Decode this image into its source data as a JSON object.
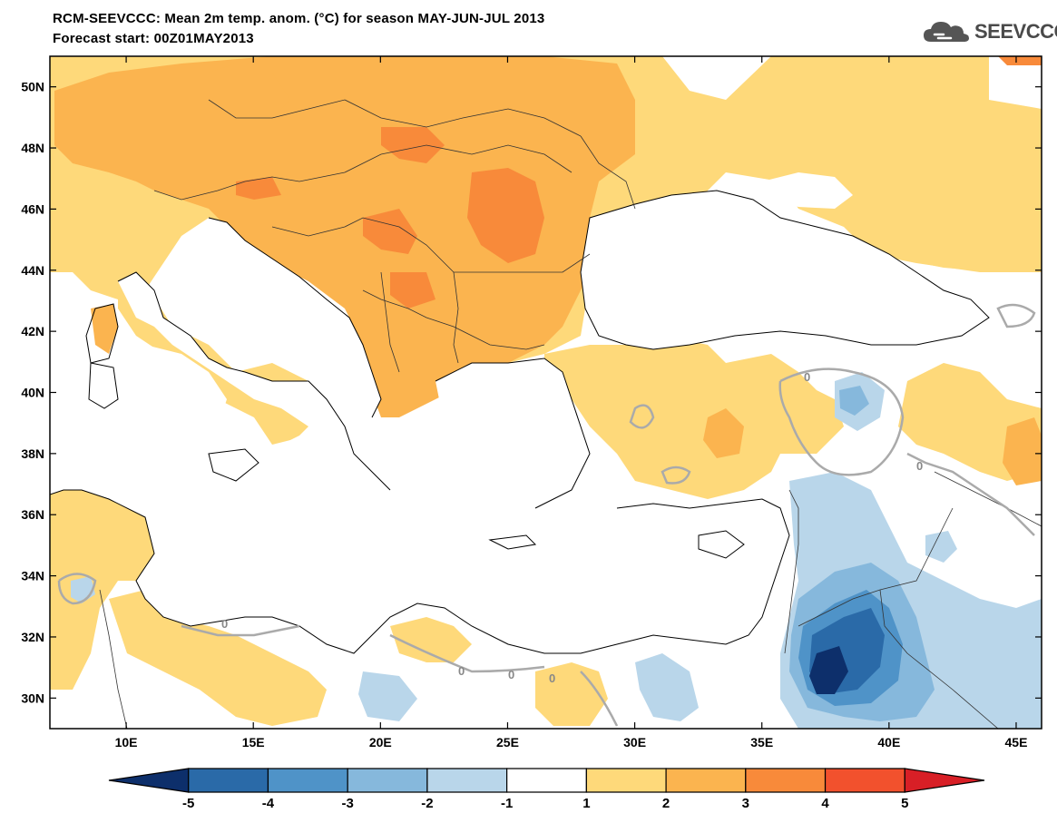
{
  "header": {
    "title": "RCM-SEEVCCC: Mean 2m temp. anom. (°C) for season MAY-JUN-JUL 2013",
    "subtitle": "Forecast start: 00Z01MAY2013"
  },
  "logo": {
    "text": "SEEVCCC",
    "icon": "cloud-icon"
  },
  "map": {
    "lon_range": [
      7,
      46
    ],
    "lat_range": [
      29,
      51
    ],
    "lon_ticks": [
      "10E",
      "15E",
      "20E",
      "25E",
      "30E",
      "35E",
      "40E",
      "45E"
    ],
    "lon_tick_values": [
      10,
      15,
      20,
      25,
      30,
      35,
      40,
      45
    ],
    "lat_ticks": [
      "30N",
      "32N",
      "34N",
      "36N",
      "38N",
      "40N",
      "42N",
      "44N",
      "46N",
      "48N",
      "50N"
    ],
    "lat_tick_values": [
      30,
      32,
      34,
      36,
      38,
      40,
      42,
      44,
      46,
      48,
      50
    ],
    "contour_labels": [
      "0",
      "0",
      "0",
      "0",
      "0",
      "0"
    ]
  },
  "colorbar": {
    "labels": [
      "-5",
      "-4",
      "-3",
      "-2",
      "-1",
      "1",
      "2",
      "3",
      "4",
      "5"
    ],
    "colors": [
      "#0d2f6b",
      "#2a6aa8",
      "#4f93c8",
      "#86b8dc",
      "#b9d6ea",
      "#ffffff",
      "#fed97a",
      "#fbb44f",
      "#f88a3a",
      "#f2512d",
      "#d81f26"
    ]
  },
  "colors": {
    "anom_1_2": "#fed97a",
    "anom_2_3": "#fbb44f",
    "anom_3_4": "#f88a3a",
    "anom_4_5": "#f2512d",
    "anom_m1_m2": "#b9d6ea",
    "anom_m2_m3": "#86b8dc",
    "anom_m3_m4": "#4f93c8",
    "anom_m4_m5": "#2a6aa8",
    "anom_below_m5": "#0d2f6b"
  }
}
